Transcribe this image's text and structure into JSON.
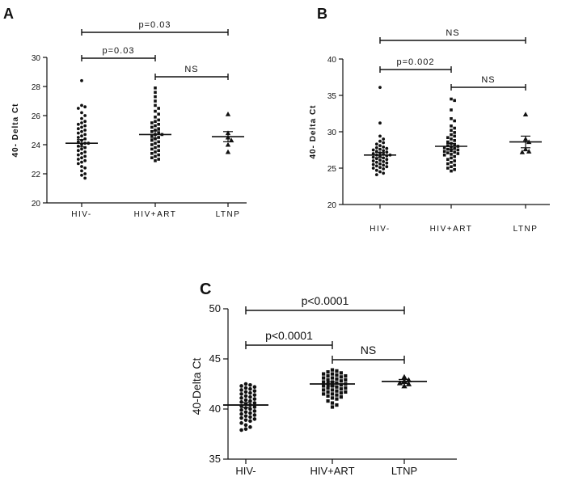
{
  "chart_data": [
    {
      "type": "scatter",
      "panel_label": "A",
      "ylabel": "40- Delta Ct",
      "ylim": [
        20,
        30
      ],
      "yticks": [
        20,
        22,
        24,
        26,
        28,
        30
      ],
      "categories": [
        "HIV-",
        "HIV+ART",
        "LTNP"
      ],
      "groups": [
        {
          "category": "HIV-",
          "marker": "circle",
          "mean": 24.1,
          "sem_low": 23.85,
          "sem_high": 24.35,
          "values": [
            28.4,
            26.7,
            26.6,
            26.5,
            26.2,
            26.0,
            25.8,
            25.6,
            25.5,
            25.4,
            25.3,
            25.2,
            25.1,
            25.0,
            24.9,
            24.8,
            24.7,
            24.6,
            24.5,
            24.4,
            24.3,
            24.2,
            24.1,
            24.1,
            24.0,
            23.9,
            23.8,
            23.7,
            23.6,
            23.5,
            23.4,
            23.3,
            23.2,
            23.1,
            23.0,
            22.9,
            22.8,
            22.7,
            22.5,
            22.4,
            22.2,
            22.0,
            21.9,
            21.7
          ]
        },
        {
          "category": "HIV+ART",
          "marker": "square",
          "mean": 24.7,
          "sem_low": 24.45,
          "sem_high": 24.95,
          "values": [
            27.9,
            27.6,
            27.3,
            27.0,
            26.7,
            26.5,
            26.3,
            26.1,
            25.9,
            25.7,
            25.6,
            25.5,
            25.4,
            25.3,
            25.2,
            25.1,
            25.0,
            24.9,
            24.8,
            24.7,
            24.7,
            24.6,
            24.5,
            24.4,
            24.3,
            24.2,
            24.1,
            24.0,
            23.9,
            23.8,
            23.7,
            23.6,
            23.5,
            23.4,
            23.3,
            23.2,
            23.1,
            23.0,
            22.9
          ]
        },
        {
          "category": "LTNP",
          "marker": "triangle",
          "mean": 24.55,
          "sem_low": 24.2,
          "sem_high": 24.9,
          "values": [
            26.1,
            24.8,
            24.5,
            24.3,
            24.0,
            23.5
          ]
        }
      ],
      "comparisons": [
        {
          "from": "HIV-",
          "to": "LTNP",
          "label": "p=0.03"
        },
        {
          "from": "HIV-",
          "to": "HIV+ART",
          "label": "p=0.03"
        },
        {
          "from": "HIV+ART",
          "to": "LTNP",
          "label": "NS"
        }
      ]
    },
    {
      "type": "scatter",
      "panel_label": "B",
      "ylabel": "40- Delta Ct",
      "ylim": [
        20,
        40
      ],
      "yticks": [
        20,
        25,
        30,
        35,
        40
      ],
      "categories": [
        "HIV-",
        "HIV+ART",
        "LTNP"
      ],
      "groups": [
        {
          "category": "HIV-",
          "marker": "circle",
          "mean": 26.8,
          "sem_low": 26.45,
          "sem_high": 27.15,
          "values": [
            36.1,
            31.2,
            29.4,
            29.0,
            28.7,
            28.5,
            28.3,
            28.1,
            27.9,
            27.8,
            27.7,
            27.6,
            27.5,
            27.4,
            27.3,
            27.2,
            27.1,
            27.0,
            26.9,
            26.8,
            26.8,
            26.7,
            26.6,
            26.5,
            26.4,
            26.3,
            26.2,
            26.1,
            26.0,
            25.9,
            25.8,
            25.7,
            25.6,
            25.5,
            25.4,
            25.3,
            25.2,
            25.1,
            25.0,
            24.9,
            24.7,
            24.5,
            24.3,
            24.1
          ]
        },
        {
          "category": "HIV+ART",
          "marker": "square",
          "mean": 28.0,
          "sem_low": 27.6,
          "sem_high": 28.4,
          "values": [
            34.5,
            34.3,
            33.0,
            31.8,
            31.5,
            30.8,
            30.5,
            30.2,
            29.9,
            29.6,
            29.4,
            29.2,
            29.0,
            28.8,
            28.6,
            28.4,
            28.2,
            28.1,
            28.0,
            27.9,
            27.8,
            27.7,
            27.6,
            27.5,
            27.4,
            27.3,
            27.2,
            27.1,
            27.0,
            26.9,
            26.8,
            26.6,
            26.4,
            26.2,
            26.0,
            25.8,
            25.6,
            25.4,
            25.2,
            25.0,
            24.8,
            24.6
          ]
        },
        {
          "category": "LTNP",
          "marker": "triangle",
          "mean": 28.6,
          "sem_low": 27.8,
          "sem_high": 29.4,
          "values": [
            32.4,
            29.0,
            28.6,
            27.6,
            27.3,
            27.2
          ]
        }
      ],
      "comparisons": [
        {
          "from": "HIV-",
          "to": "LTNP",
          "label": "NS"
        },
        {
          "from": "HIV-",
          "to": "HIV+ART",
          "label": "p=0.002"
        },
        {
          "from": "HIV+ART",
          "to": "LTNP",
          "label": "NS"
        }
      ]
    },
    {
      "type": "scatter",
      "panel_label": "C",
      "ylabel": "40-Delta Ct",
      "ylim": [
        35,
        50
      ],
      "yticks": [
        35,
        40,
        45,
        50
      ],
      "categories": [
        "HIV-",
        "HIV+ART",
        "LTNP"
      ],
      "groups": [
        {
          "category": "HIV-",
          "marker": "circle",
          "mean": 40.4,
          "sem_low": 40.15,
          "sem_high": 40.65,
          "values": [
            42.5,
            42.4,
            42.3,
            42.2,
            42.1,
            42.0,
            41.9,
            41.8,
            41.7,
            41.6,
            41.5,
            41.4,
            41.3,
            41.2,
            41.1,
            41.0,
            40.9,
            40.8,
            40.7,
            40.6,
            40.5,
            40.4,
            40.3,
            40.2,
            40.1,
            40.0,
            39.9,
            39.8,
            39.7,
            39.6,
            39.5,
            39.4,
            39.3,
            39.2,
            39.1,
            39.0,
            38.9,
            38.8,
            38.6,
            38.4,
            38.2,
            38.0,
            37.9
          ]
        },
        {
          "category": "HIV+ART",
          "marker": "square",
          "mean": 42.5,
          "sem_low": 42.3,
          "sem_high": 42.7,
          "values": [
            43.9,
            43.8,
            43.7,
            43.6,
            43.5,
            43.4,
            43.3,
            43.2,
            43.1,
            43.0,
            42.9,
            42.8,
            42.7,
            42.6,
            42.5,
            42.4,
            42.3,
            42.2,
            42.1,
            42.0,
            41.9,
            41.8,
            41.7,
            41.6,
            41.5,
            41.4,
            41.3,
            41.2,
            41.1,
            41.0,
            40.8,
            40.6,
            40.4,
            40.2,
            43.5,
            43.3,
            43.1,
            42.9,
            42.7,
            42.5,
            42.3,
            42.1,
            41.9,
            41.7,
            41.5
          ]
        },
        {
          "category": "LTNP",
          "marker": "triangle",
          "mean": 42.75,
          "sem_low": 42.55,
          "sem_high": 42.95,
          "values": [
            43.2,
            42.9,
            42.8,
            42.6,
            42.5,
            42.3
          ]
        }
      ],
      "comparisons": [
        {
          "from": "HIV-",
          "to": "LTNP",
          "label": "p<0.0001"
        },
        {
          "from": "HIV-",
          "to": "HIV+ART",
          "label": "p<0.0001"
        },
        {
          "from": "HIV+ART",
          "to": "LTNP",
          "label": "NS"
        }
      ]
    }
  ]
}
